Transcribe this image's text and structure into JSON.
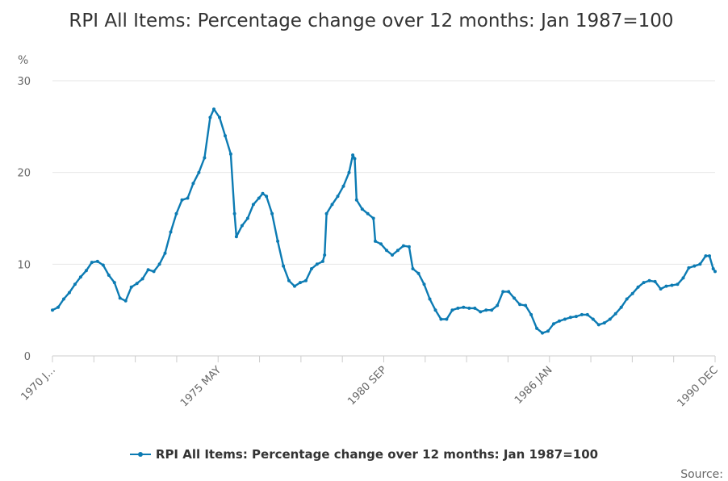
{
  "chart_data": {
    "type": "line",
    "title": "RPI All Items: Percentage change over 12 months: Jan 1987=100",
    "ylabel": "%",
    "ylim": [
      0,
      30
    ],
    "yticks": [
      0,
      10,
      20,
      30
    ],
    "x_tick_labels": [
      "1970 J...",
      "1975 MAY",
      "1980 SEP",
      "1986 JAN",
      "1990 DEC"
    ],
    "grid": true,
    "legend": "bottom",
    "series": [
      {
        "name": "RPI All Items: Percentage change over 12 months: Jan 1987=100",
        "color": "#0c7bb3",
        "points": [
          [
            "1970-01",
            5.0
          ],
          [
            "1970-04",
            5.3
          ],
          [
            "1970-07",
            6.2
          ],
          [
            "1970-10",
            6.9
          ],
          [
            "1971-01",
            7.8
          ],
          [
            "1971-04",
            8.6
          ],
          [
            "1971-07",
            9.3
          ],
          [
            "1971-10",
            10.2
          ],
          [
            "1972-01",
            10.3
          ],
          [
            "1972-04",
            9.9
          ],
          [
            "1972-07",
            8.8
          ],
          [
            "1972-10",
            8.0
          ],
          [
            "1973-01",
            6.3
          ],
          [
            "1973-04",
            6.0
          ],
          [
            "1973-07",
            7.5
          ],
          [
            "1973-10",
            7.9
          ],
          [
            "1974-01",
            8.4
          ],
          [
            "1974-04",
            9.4
          ],
          [
            "1974-07",
            9.2
          ],
          [
            "1974-10",
            10.0
          ],
          [
            "1975-01",
            11.2
          ],
          [
            "1975-04",
            13.5
          ],
          [
            "1975-07",
            15.5
          ],
          [
            "1975-10",
            17.0
          ],
          [
            "1976-01",
            17.2
          ],
          [
            "1976-04",
            18.8
          ],
          [
            "1976-07",
            20.0
          ],
          [
            "1976-10",
            21.6
          ],
          [
            "1977-01",
            26.0
          ],
          [
            "1977-03",
            26.9
          ],
          [
            "1977-06",
            26.0
          ],
          [
            "1977-09",
            24.0
          ],
          [
            "1977-12",
            22.0
          ],
          [
            "1978-02",
            15.5
          ],
          [
            "1978-03",
            13.0
          ],
          [
            "1978-06",
            14.2
          ],
          [
            "1978-09",
            15.0
          ],
          [
            "1978-12",
            16.5
          ],
          [
            "1979-03",
            17.2
          ],
          [
            "1979-05",
            17.7
          ],
          [
            "1979-07",
            17.4
          ],
          [
            "1979-10",
            15.5
          ],
          [
            "1980-01",
            12.5
          ],
          [
            "1980-04",
            9.8
          ],
          [
            "1980-07",
            8.2
          ],
          [
            "1980-10",
            7.6
          ],
          [
            "1981-01",
            8.0
          ],
          [
            "1981-04",
            8.2
          ],
          [
            "1981-07",
            9.5
          ],
          [
            "1981-10",
            10.0
          ],
          [
            "1982-01",
            10.3
          ],
          [
            "1982-02",
            11.0
          ],
          [
            "1982-03",
            15.5
          ],
          [
            "1982-06",
            16.5
          ],
          [
            "1982-09",
            17.4
          ],
          [
            "1982-12",
            18.5
          ],
          [
            "1983-03",
            20.0
          ],
          [
            "1983-05",
            21.9
          ],
          [
            "1983-06",
            21.5
          ],
          [
            "1983-07",
            17.0
          ],
          [
            "1983-10",
            16.0
          ],
          [
            "1984-01",
            15.5
          ],
          [
            "1984-04",
            15.0
          ],
          [
            "1984-05",
            12.5
          ],
          [
            "1984-08",
            12.2
          ],
          [
            "1984-11",
            11.5
          ],
          [
            "1985-02",
            11.0
          ],
          [
            "1985-05",
            11.5
          ],
          [
            "1985-08",
            12.0
          ],
          [
            "1985-11",
            11.9
          ],
          [
            "1986-01",
            9.5
          ],
          [
            "1986-04",
            9.0
          ],
          [
            "1986-07",
            7.8
          ],
          [
            "1986-10",
            6.2
          ],
          [
            "1987-01",
            5.0
          ],
          [
            "1987-04",
            4.0
          ],
          [
            "1987-07",
            4.0
          ],
          [
            "1987-10",
            5.0
          ],
          [
            "1988-01",
            5.2
          ],
          [
            "1988-04",
            5.3
          ],
          [
            "1988-07",
            5.2
          ],
          [
            "1988-10",
            5.2
          ],
          [
            "1989-01",
            4.8
          ],
          [
            "1989-04",
            5.0
          ],
          [
            "1989-07",
            5.0
          ],
          [
            "1989-10",
            5.5
          ],
          [
            "1990-01",
            7.0
          ],
          [
            "1990-04",
            7.0
          ],
          [
            "1990-07",
            6.3
          ],
          [
            "1990-10",
            5.6
          ],
          [
            "1991-01",
            5.5
          ],
          [
            "1991-04",
            4.5
          ],
          [
            "1991-07",
            3.0
          ],
          [
            "1991-10",
            2.5
          ],
          [
            "1992-01",
            2.7
          ],
          [
            "1992-04",
            3.5
          ],
          [
            "1992-07",
            3.8
          ],
          [
            "1992-10",
            4.0
          ],
          [
            "1993-01",
            4.2
          ],
          [
            "1993-04",
            4.3
          ],
          [
            "1993-07",
            4.5
          ],
          [
            "1993-10",
            4.5
          ],
          [
            "1994-01",
            4.0
          ],
          [
            "1994-04",
            3.4
          ],
          [
            "1994-07",
            3.6
          ],
          [
            "1994-10",
            4.0
          ],
          [
            "1995-01",
            4.6
          ],
          [
            "1995-04",
            5.3
          ],
          [
            "1995-07",
            6.2
          ],
          [
            "1995-10",
            6.8
          ],
          [
            "1996-01",
            7.5
          ],
          [
            "1996-04",
            8.0
          ],
          [
            "1996-07",
            8.2
          ],
          [
            "1996-10",
            8.1
          ],
          [
            "1997-01",
            7.3
          ],
          [
            "1997-04",
            7.6
          ],
          [
            "1997-07",
            7.7
          ],
          [
            "1997-10",
            7.8
          ],
          [
            "1998-01",
            8.5
          ],
          [
            "1998-04",
            9.6
          ],
          [
            "1998-07",
            9.8
          ],
          [
            "1998-10",
            10.0
          ],
          [
            "1999-01",
            10.9
          ],
          [
            "1999-03",
            10.9
          ],
          [
            "1999-05",
            9.5
          ],
          [
            "1999-06",
            9.2
          ]
        ]
      }
    ]
  },
  "legend_label": "RPI All Items: Percentage change over 12 months: Jan 1987=100",
  "source_label": "Source:"
}
